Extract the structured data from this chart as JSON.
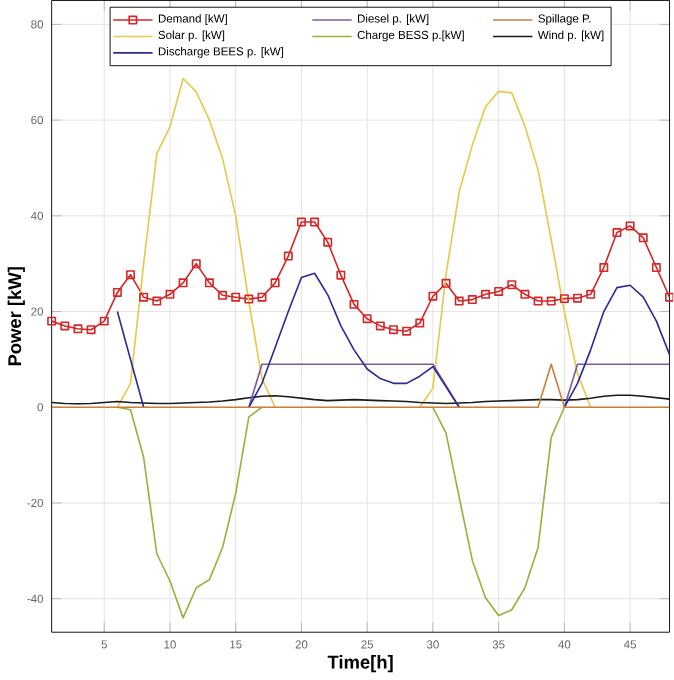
{
  "chart_data": {
    "type": "line",
    "xlabel": "Time[h]",
    "ylabel": "Power [kW]",
    "x": [
      1,
      2,
      3,
      4,
      5,
      6,
      7,
      8,
      9,
      10,
      11,
      12,
      13,
      14,
      15,
      16,
      17,
      18,
      19,
      20,
      21,
      22,
      23,
      24,
      25,
      26,
      27,
      28,
      29,
      30,
      31,
      32,
      33,
      34,
      35,
      36,
      37,
      38,
      39,
      40,
      41,
      42,
      43,
      44,
      45,
      46,
      47,
      48
    ],
    "xlim": [
      1,
      48
    ],
    "ylim": [
      -47,
      85
    ],
    "xticks": [
      5,
      10,
      15,
      20,
      25,
      30,
      35,
      40,
      45
    ],
    "yticks": [
      -40,
      -20,
      0,
      20,
      40,
      60,
      80
    ],
    "grid": true,
    "legend": "top",
    "line_style": "solid",
    "series": [
      {
        "name": "Demand [kW]",
        "color": "#d62728",
        "marker": "square",
        "values": [
          18,
          17,
          16.4,
          16.2,
          18,
          24,
          27.7,
          23,
          22.2,
          23.6,
          26,
          30,
          26,
          23.4,
          23,
          22.6,
          23,
          26,
          31.6,
          38.7,
          38.7,
          34.5,
          27.6,
          21.5,
          18.5,
          17,
          16.2,
          15.9,
          17.6,
          23.2,
          25.9,
          22.2,
          22.5,
          23.6,
          24.2,
          25.6,
          23.6,
          22.2,
          22.2,
          22.7,
          22.8,
          23.6,
          29.2,
          36.5,
          37.9,
          35.4,
          29.2,
          23
        ]
      },
      {
        "name": "Solar p. [kW]",
        "color": "#e6c84a",
        "marker": "none",
        "values": [
          null,
          null,
          null,
          null,
          null,
          0,
          5,
          30,
          53,
          58.6,
          68.7,
          65.9,
          60,
          52,
          40,
          22,
          6,
          0,
          null,
          null,
          null,
          null,
          null,
          null,
          null,
          null,
          null,
          null,
          0,
          4,
          27.8,
          45,
          54.8,
          62.8,
          66,
          65.7,
          58.7,
          49.6,
          35,
          20,
          7,
          0,
          null,
          null,
          null,
          null,
          null,
          null
        ]
      },
      {
        "name": "Wind p. [kW]",
        "color": "#1a1a1a",
        "marker": "none",
        "values": [
          1,
          0.8,
          0.7,
          0.8,
          1,
          1.2,
          1,
          0.9,
          0.8,
          0.8,
          0.9,
          1,
          1.1,
          1.3,
          1.6,
          2,
          2.3,
          2.4,
          2.2,
          1.9,
          1.6,
          1.4,
          1.5,
          1.6,
          1.5,
          1.4,
          1.3,
          1.2,
          1,
          0.9,
          0.8,
          0.9,
          1,
          1.2,
          1.3,
          1.4,
          1.5,
          1.6,
          1.6,
          1.5,
          1.6,
          1.9,
          2.3,
          2.5,
          2.5,
          2.3,
          2,
          1.7
        ]
      },
      {
        "name": "Diesel p. [kW]",
        "color": "#7e5a9b",
        "marker": "none",
        "values": [
          null,
          null,
          null,
          null,
          null,
          null,
          null,
          null,
          null,
          null,
          null,
          null,
          null,
          null,
          null,
          0,
          9,
          9,
          9,
          9,
          9,
          9,
          9,
          9,
          9,
          9,
          9,
          9,
          9,
          9,
          4.5,
          0,
          null,
          null,
          null,
          null,
          null,
          null,
          null,
          0,
          9,
          9,
          9,
          9,
          9,
          9,
          9,
          9
        ]
      },
      {
        "name": "Charge BESS p.[kW]",
        "color": "#9bb03c",
        "marker": "none",
        "values": [
          null,
          null,
          null,
          null,
          null,
          0,
          -0.5,
          -10.5,
          -30.6,
          -36.3,
          -44,
          -37.7,
          -36,
          -29.3,
          -18,
          -2,
          0,
          null,
          null,
          null,
          null,
          null,
          null,
          null,
          null,
          null,
          null,
          null,
          null,
          0,
          -5.4,
          -18.8,
          -32,
          -39.8,
          -43.5,
          -42.3,
          -37.7,
          -29.3,
          -6.3,
          0,
          null,
          null,
          null,
          null,
          null,
          null,
          null,
          null
        ]
      },
      {
        "name": "Discharge BEES p. [kW]",
        "color": "#2a2a9a",
        "marker": "none",
        "values": [
          null,
          null,
          null,
          null,
          null,
          20,
          10,
          0,
          null,
          null,
          null,
          null,
          null,
          null,
          null,
          0,
          5,
          12.5,
          20,
          27.1,
          28,
          23.5,
          17,
          12,
          8,
          6,
          5,
          5,
          6.5,
          8.5,
          4.3,
          0,
          null,
          null,
          null,
          null,
          null,
          null,
          null,
          0,
          5,
          12,
          20,
          25,
          25.5,
          23,
          18,
          11
        ]
      },
      {
        "name": "Spillage P.",
        "color": "#c8803a",
        "marker": "none",
        "values": [
          0,
          0,
          0,
          0,
          0,
          0,
          0,
          0,
          0,
          0,
          0,
          0,
          0,
          0,
          0,
          0,
          0,
          0,
          0,
          0,
          0,
          0,
          0,
          0,
          0,
          0,
          0,
          0,
          0,
          0,
          0,
          0,
          0,
          0,
          0,
          0,
          0,
          0,
          9,
          0,
          0,
          0,
          0,
          0,
          0,
          0,
          0,
          0
        ]
      }
    ]
  }
}
